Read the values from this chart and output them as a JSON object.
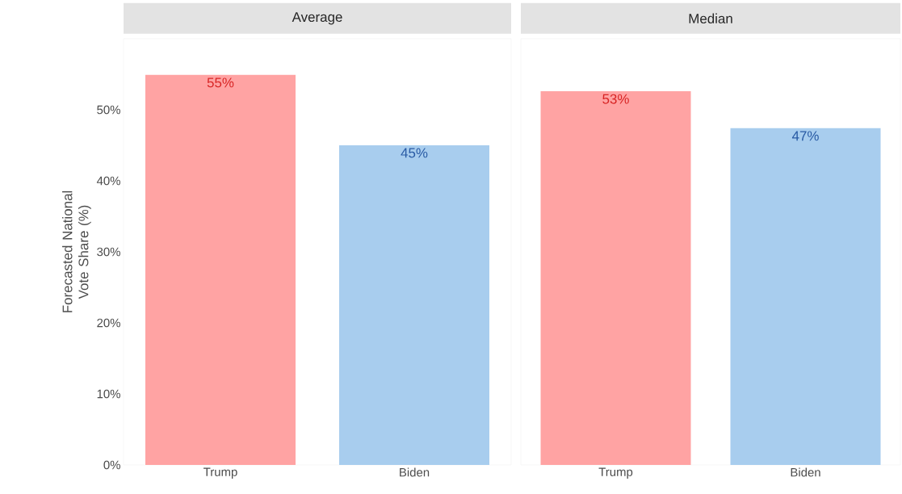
{
  "chart_data": [
    {
      "type": "bar",
      "title": "Average",
      "ylabel": "Forecasted National Vote Share (%)",
      "categories": [
        "Trump",
        "Biden"
      ],
      "values": [
        54.9,
        45.0
      ],
      "colors": [
        "#ffa3a3",
        "#a8cdee"
      ],
      "value_labels": [
        "55%",
        "45%"
      ],
      "ylim": [
        0,
        60
      ],
      "yticks": [
        {
          "value": 0,
          "label": "0%"
        },
        {
          "value": 10,
          "label": "10%"
        },
        {
          "value": 20,
          "label": "20%"
        },
        {
          "value": 30,
          "label": "30%"
        },
        {
          "value": 40,
          "label": "40%"
        },
        {
          "value": 50,
          "label": "50%"
        }
      ],
      "grid": false
    },
    {
      "type": "bar",
      "title": "Median",
      "categories": [
        "Trump",
        "Biden"
      ],
      "values": [
        52.6,
        47.4
      ],
      "colors": [
        "#ffa3a3",
        "#a8cdee"
      ],
      "value_labels": [
        "53%",
        "47%"
      ],
      "ylim": [
        0,
        60
      ],
      "tick_labels": "x",
      "grid": false
    }
  ]
}
